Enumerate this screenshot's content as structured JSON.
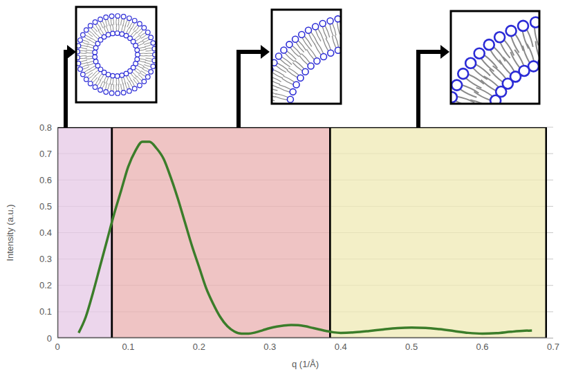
{
  "chart_data": {
    "type": "line",
    "x_label": "q (1/Å)",
    "y_label": "Intensity (a.u.)",
    "x": [
      0.03,
      0.04,
      0.05,
      0.06,
      0.07,
      0.08,
      0.09,
      0.1,
      0.11,
      0.12,
      0.13,
      0.14,
      0.15,
      0.16,
      0.17,
      0.18,
      0.19,
      0.2,
      0.21,
      0.22,
      0.23,
      0.24,
      0.25,
      0.26,
      0.27,
      0.28,
      0.29,
      0.3,
      0.31,
      0.32,
      0.33,
      0.34,
      0.35,
      0.36,
      0.37,
      0.38,
      0.39,
      0.4,
      0.42,
      0.44,
      0.46,
      0.48,
      0.5,
      0.52,
      0.54,
      0.56,
      0.58,
      0.6,
      0.62,
      0.64,
      0.66,
      0.67
    ],
    "values": [
      0.02,
      0.08,
      0.17,
      0.27,
      0.37,
      0.47,
      0.56,
      0.65,
      0.71,
      0.745,
      0.745,
      0.72,
      0.68,
      0.61,
      0.53,
      0.44,
      0.35,
      0.27,
      0.19,
      0.13,
      0.08,
      0.045,
      0.025,
      0.017,
      0.017,
      0.022,
      0.03,
      0.038,
      0.044,
      0.048,
      0.05,
      0.049,
      0.045,
      0.039,
      0.033,
      0.027,
      0.022,
      0.02,
      0.022,
      0.027,
      0.033,
      0.038,
      0.04,
      0.039,
      0.034,
      0.027,
      0.02,
      0.017,
      0.019,
      0.024,
      0.028,
      0.029
    ],
    "color": "#3b7d2a",
    "xlim": [
      0,
      0.7
    ],
    "xticks": [
      0,
      0.1,
      0.2,
      0.3,
      0.4,
      0.5,
      0.6,
      0.7
    ],
    "ylim": [
      0,
      0.8
    ],
    "yticks": [
      0,
      0.1,
      0.2,
      0.3,
      0.4,
      0.5,
      0.6,
      0.7,
      0.8
    ],
    "grid": true,
    "regions": [
      {
        "range": [
          0,
          0.077
        ],
        "color": "#e6c8e6"
      },
      {
        "range": [
          0.077,
          0.385
        ],
        "color": "#eab0b0"
      },
      {
        "range": [
          0.385,
          0.69
        ],
        "color": "#efe9b4"
      }
    ]
  }
}
